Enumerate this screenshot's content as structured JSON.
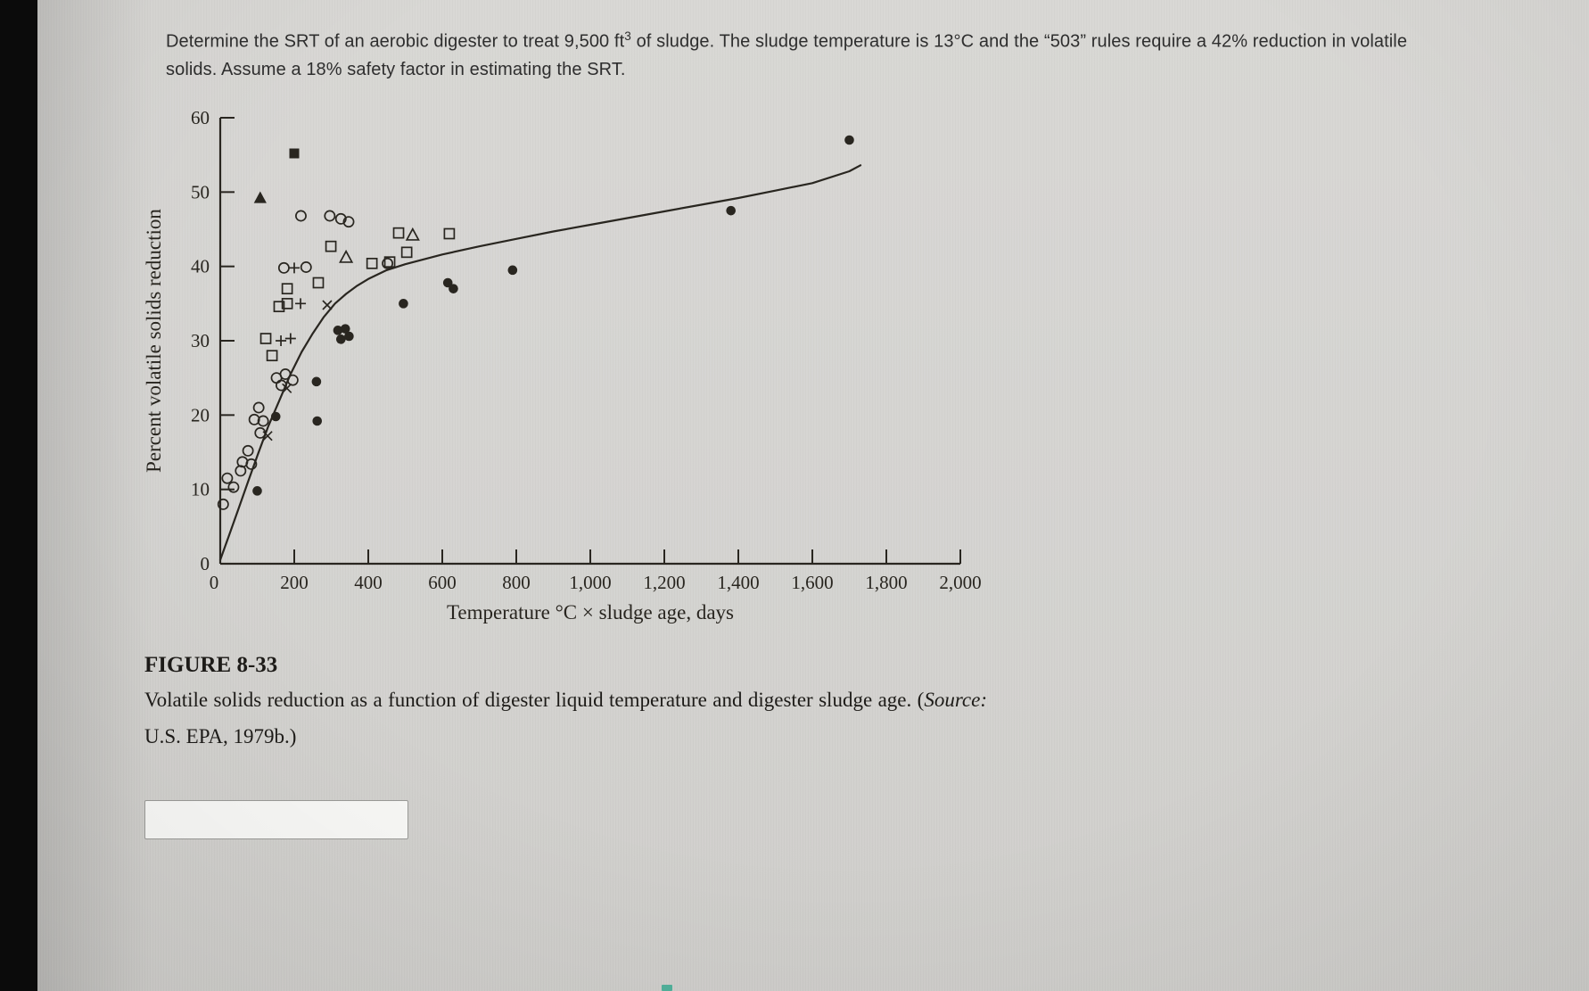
{
  "problem": {
    "text_before_sup": "Determine the SRT of an aerobic digester to treat 9,500 ft",
    "sup": "3",
    "text_after_sup": " of sludge. The sludge temperature is 13°C and the “503” rules require a 42% reduction in volatile solids. Assume a 18% safety factor in estimating the SRT."
  },
  "figure": {
    "label": "FIGURE 8-33",
    "caption_before_source": "Volatile solids reduction as a function of digester liquid temperature and digester sludge age. (",
    "source_label": "Source:",
    "caption_after_source": " U.S. EPA, 1979b.)"
  },
  "answer_input": {
    "value": ""
  },
  "chart_data": {
    "type": "scatter",
    "title": "",
    "xlabel": "Temperature °C × sludge age, days",
    "ylabel": "Percent volatile solids reduction",
    "xlim": [
      0,
      2000
    ],
    "ylim": [
      0,
      60
    ],
    "grid": false,
    "x_ticks": [
      0,
      200,
      400,
      600,
      800,
      1000,
      1200,
      1400,
      1600,
      1800,
      2000
    ],
    "x_tick_labels": [
      "0",
      "200",
      "400",
      "600",
      "800",
      "1,000",
      "1,200",
      "1,400",
      "1,600",
      "1,800",
      "2,000"
    ],
    "y_ticks": [
      0,
      10,
      20,
      30,
      40,
      50,
      60
    ],
    "curve": {
      "name": "fitted-curve",
      "points": [
        [
          0,
          0.5
        ],
        [
          25,
          4
        ],
        [
          50,
          7.5
        ],
        [
          75,
          11
        ],
        [
          100,
          14.5
        ],
        [
          130,
          18.5
        ],
        [
          160,
          22
        ],
        [
          190,
          25.5
        ],
        [
          220,
          28.5
        ],
        [
          250,
          31
        ],
        [
          280,
          33.2
        ],
        [
          310,
          35
        ],
        [
          340,
          36.3
        ],
        [
          370,
          37.4
        ],
        [
          400,
          38.3
        ],
        [
          450,
          39.5
        ],
        [
          500,
          40.3
        ],
        [
          600,
          41.6
        ],
        [
          700,
          42.7
        ],
        [
          800,
          43.7
        ],
        [
          900,
          44.7
        ],
        [
          1000,
          45.6
        ],
        [
          1100,
          46.5
        ],
        [
          1200,
          47.4
        ],
        [
          1300,
          48.3
        ],
        [
          1400,
          49.2
        ],
        [
          1500,
          50.2
        ],
        [
          1600,
          51.2
        ],
        [
          1700,
          52.8
        ],
        [
          1730,
          53.6
        ]
      ]
    },
    "series": [
      {
        "name": "filled-circle-data",
        "marker": "circle-filled",
        "points": [
          [
            1700,
            57
          ],
          [
            1380,
            47.5
          ],
          [
            790,
            39.5
          ],
          [
            615,
            37.8
          ],
          [
            630,
            37
          ],
          [
            495,
            35
          ],
          [
            318,
            31.4
          ],
          [
            338,
            31.6
          ],
          [
            326,
            30.2
          ],
          [
            348,
            30.6
          ],
          [
            260,
            24.5
          ],
          [
            150,
            19.8
          ],
          [
            262,
            19.2
          ],
          [
            100,
            9.8
          ]
        ]
      },
      {
        "name": "open-circle-data",
        "marker": "circle-open",
        "points": [
          [
            218,
            46.8
          ],
          [
            296,
            46.8
          ],
          [
            326,
            46.4
          ],
          [
            347,
            46
          ],
          [
            452,
            40.4
          ],
          [
            172,
            39.8
          ],
          [
            232,
            39.9
          ],
          [
            152,
            25
          ],
          [
            176,
            25.5
          ],
          [
            196,
            24.7
          ],
          [
            165,
            24
          ],
          [
            104,
            21
          ],
          [
            92,
            19.4
          ],
          [
            116,
            19.2
          ],
          [
            108,
            17.6
          ],
          [
            75,
            15.2
          ],
          [
            60,
            13.7
          ],
          [
            84,
            13.4
          ],
          [
            55,
            12.5
          ],
          [
            19,
            11.5
          ],
          [
            36,
            10.3
          ],
          [
            8,
            8
          ]
        ]
      },
      {
        "name": "open-square-data",
        "marker": "square-open",
        "points": [
          [
            482,
            44.5
          ],
          [
            619,
            44.4
          ],
          [
            299,
            42.7
          ],
          [
            410,
            40.4
          ],
          [
            458,
            40.6
          ],
          [
            504,
            41.9
          ],
          [
            181,
            37
          ],
          [
            265,
            37.8
          ],
          [
            159,
            34.6
          ],
          [
            181,
            35
          ],
          [
            123,
            30.3
          ],
          [
            140,
            28
          ]
        ]
      },
      {
        "name": "open-triangle-data",
        "marker": "triangle-open",
        "points": [
          [
            520,
            44.2
          ],
          [
            340,
            41.2
          ]
        ]
      },
      {
        "name": "filled-square-data",
        "marker": "square-filled",
        "points": [
          [
            200,
            55.2
          ]
        ]
      },
      {
        "name": "filled-triangle-data",
        "marker": "triangle-filled",
        "points": [
          [
            108,
            49.2
          ]
        ]
      },
      {
        "name": "plus-data",
        "marker": "plus",
        "points": [
          [
            200,
            39.8
          ],
          [
            217,
            35
          ],
          [
            164,
            30
          ],
          [
            190,
            30.3
          ]
        ]
      },
      {
        "name": "x-data",
        "marker": "x",
        "points": [
          [
            289,
            34.8
          ],
          [
            180,
            23.6
          ],
          [
            128,
            17.2
          ]
        ]
      }
    ]
  }
}
